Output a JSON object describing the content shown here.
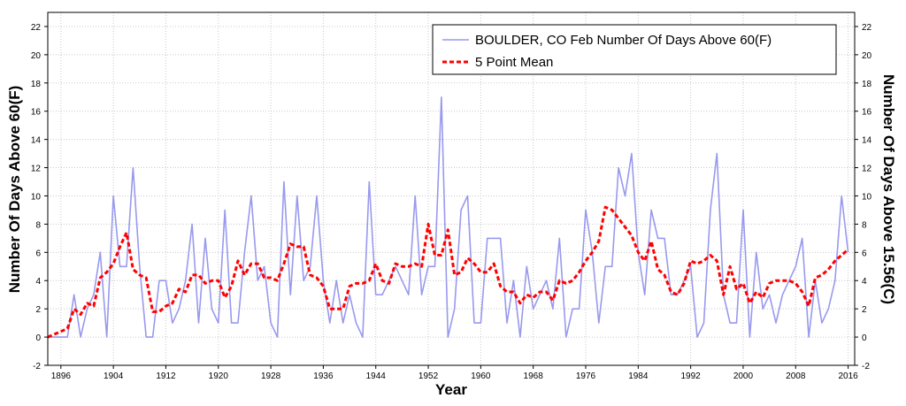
{
  "chart_data": {
    "type": "line",
    "xlabel": "Year",
    "ylabel": "Number Of Days Above 60(F)",
    "ylabel_right": "Number Of Days Above 15.56(C)",
    "xlim": [
      1894,
      2017
    ],
    "ylim": [
      -2,
      23
    ],
    "x_ticks": [
      1896,
      1904,
      1912,
      1920,
      1928,
      1936,
      1944,
      1952,
      1960,
      1968,
      1976,
      1984,
      1992,
      2000,
      2008,
      2016
    ],
    "y_ticks": [
      -2,
      0,
      2,
      4,
      6,
      8,
      10,
      12,
      14,
      16,
      18,
      20,
      22
    ],
    "grid": true,
    "legend_position": "top-right",
    "series": [
      {
        "name": "BOULDER, CO  Feb  Number Of Days Above 60(F)",
        "color": "#9999ee",
        "style": "solid",
        "x": [
          1894,
          1895,
          1896,
          1897,
          1898,
          1899,
          1900,
          1901,
          1902,
          1903,
          1904,
          1905,
          1906,
          1907,
          1908,
          1909,
          1910,
          1911,
          1912,
          1913,
          1914,
          1915,
          1916,
          1917,
          1918,
          1919,
          1920,
          1921,
          1922,
          1923,
          1924,
          1925,
          1926,
          1927,
          1928,
          1929,
          1930,
          1931,
          1932,
          1933,
          1934,
          1935,
          1936,
          1937,
          1938,
          1939,
          1940,
          1941,
          1942,
          1943,
          1944,
          1945,
          1946,
          1947,
          1948,
          1949,
          1950,
          1951,
          1952,
          1953,
          1954,
          1955,
          1956,
          1957,
          1958,
          1959,
          1960,
          1961,
          1962,
          1963,
          1964,
          1965,
          1966,
          1967,
          1968,
          1969,
          1970,
          1971,
          1972,
          1973,
          1974,
          1975,
          1976,
          1977,
          1978,
          1979,
          1980,
          1981,
          1982,
          1983,
          1984,
          1985,
          1986,
          1987,
          1988,
          1989,
          1990,
          1991,
          1992,
          1993,
          1994,
          1995,
          1996,
          1997,
          1998,
          1999,
          2000,
          2001,
          2002,
          2003,
          2004,
          2005,
          2006,
          2007,
          2008,
          2009,
          2010,
          2011,
          2012,
          2013,
          2014,
          2015,
          2016
        ],
        "values": [
          0,
          0,
          0,
          0,
          3,
          0,
          2,
          3,
          6,
          0,
          10,
          5,
          5,
          12,
          5,
          0,
          0,
          4,
          4,
          1,
          2,
          4,
          8,
          1,
          7,
          2,
          1,
          9,
          1,
          1,
          6,
          10,
          4,
          5,
          1,
          0,
          11,
          3,
          10,
          4,
          5,
          10,
          4,
          1,
          4,
          1,
          3,
          1,
          0,
          11,
          3,
          3,
          4,
          5,
          4,
          3,
          10,
          3,
          5,
          5,
          17,
          0,
          2,
          9,
          10,
          1,
          1,
          7,
          7,
          7,
          1,
          4,
          0,
          5,
          2,
          3,
          4,
          2,
          7,
          0,
          2,
          2,
          9,
          6,
          1,
          5,
          5,
          12,
          10,
          13,
          6,
          3,
          9,
          7,
          7,
          3,
          3,
          4,
          5,
          0,
          1,
          9,
          13,
          3,
          1,
          1,
          9,
          0,
          6,
          2,
          3,
          1,
          3,
          4,
          5,
          7,
          0,
          4,
          1,
          2,
          4,
          10,
          6
        ]
      },
      {
        "name": "5 Point Mean",
        "color": "#ff0000",
        "style": "dashed",
        "x": [
          1894,
          1895,
          1896,
          1897,
          1898,
          1899,
          1900,
          1901,
          1902,
          1903,
          1904,
          1905,
          1906,
          1907,
          1908,
          1909,
          1910,
          1911,
          1912,
          1913,
          1914,
          1915,
          1916,
          1917,
          1918,
          1919,
          1920,
          1921,
          1922,
          1923,
          1924,
          1925,
          1926,
          1927,
          1928,
          1929,
          1930,
          1931,
          1932,
          1933,
          1934,
          1935,
          1936,
          1937,
          1938,
          1939,
          1940,
          1941,
          1942,
          1943,
          1944,
          1945,
          1946,
          1947,
          1948,
          1949,
          1950,
          1951,
          1952,
          1953,
          1954,
          1955,
          1956,
          1957,
          1958,
          1959,
          1960,
          1961,
          1962,
          1963,
          1964,
          1965,
          1966,
          1967,
          1968,
          1969,
          1970,
          1971,
          1972,
          1973,
          1974,
          1975,
          1976,
          1977,
          1978,
          1979,
          1980,
          1981,
          1982,
          1983,
          1984,
          1985,
          1986,
          1987,
          1988,
          1989,
          1990,
          1991,
          1992,
          1993,
          1994,
          1995,
          1996,
          1997,
          1998,
          1999,
          2000,
          2001,
          2002,
          2003,
          2004,
          2005,
          2006,
          2007,
          2008,
          2009,
          2010,
          2011,
          2012,
          2013,
          2014,
          2015,
          2016
        ],
        "values": [
          0.0,
          0.2,
          0.4,
          0.6,
          2.0,
          1.6,
          2.4,
          2.2,
          4.2,
          4.6,
          5.2,
          6.4,
          7.4,
          4.8,
          4.4,
          4.2,
          1.8,
          1.8,
          2.2,
          2.4,
          3.4,
          3.2,
          4.4,
          4.4,
          3.8,
          4.0,
          4.0,
          2.8,
          3.6,
          5.4,
          4.4,
          5.2,
          5.2,
          4.2,
          4.2,
          4.0,
          5.2,
          6.6,
          6.4,
          6.4,
          4.4,
          4.2,
          3.6,
          2.0,
          2.0,
          2.0,
          3.6,
          3.8,
          3.8,
          4.0,
          5.2,
          4.0,
          3.8,
          5.2,
          5.0,
          5.0,
          5.2,
          5.0,
          8.0,
          5.8,
          5.8,
          7.6,
          4.4,
          4.6,
          5.6,
          5.2,
          4.6,
          4.6,
          5.2,
          3.6,
          3.2,
          3.2,
          2.4,
          3.0,
          2.8,
          3.2,
          3.2,
          2.6,
          4.0,
          3.8,
          4.0,
          4.6,
          5.4,
          6.0,
          6.8,
          9.2,
          9.0,
          8.4,
          7.8,
          7.2,
          6.0,
          5.4,
          6.8,
          4.8,
          4.4,
          3.2,
          3.0,
          3.8,
          5.4,
          5.2,
          5.4,
          5.8,
          5.4,
          3.0,
          5.0,
          3.4,
          3.8,
          2.4,
          3.2,
          2.8,
          3.8,
          4.0,
          4.0,
          4.0,
          3.8,
          3.2,
          2.2,
          4.2,
          4.4,
          4.8,
          5.4,
          5.8,
          6.2
        ]
      }
    ]
  }
}
